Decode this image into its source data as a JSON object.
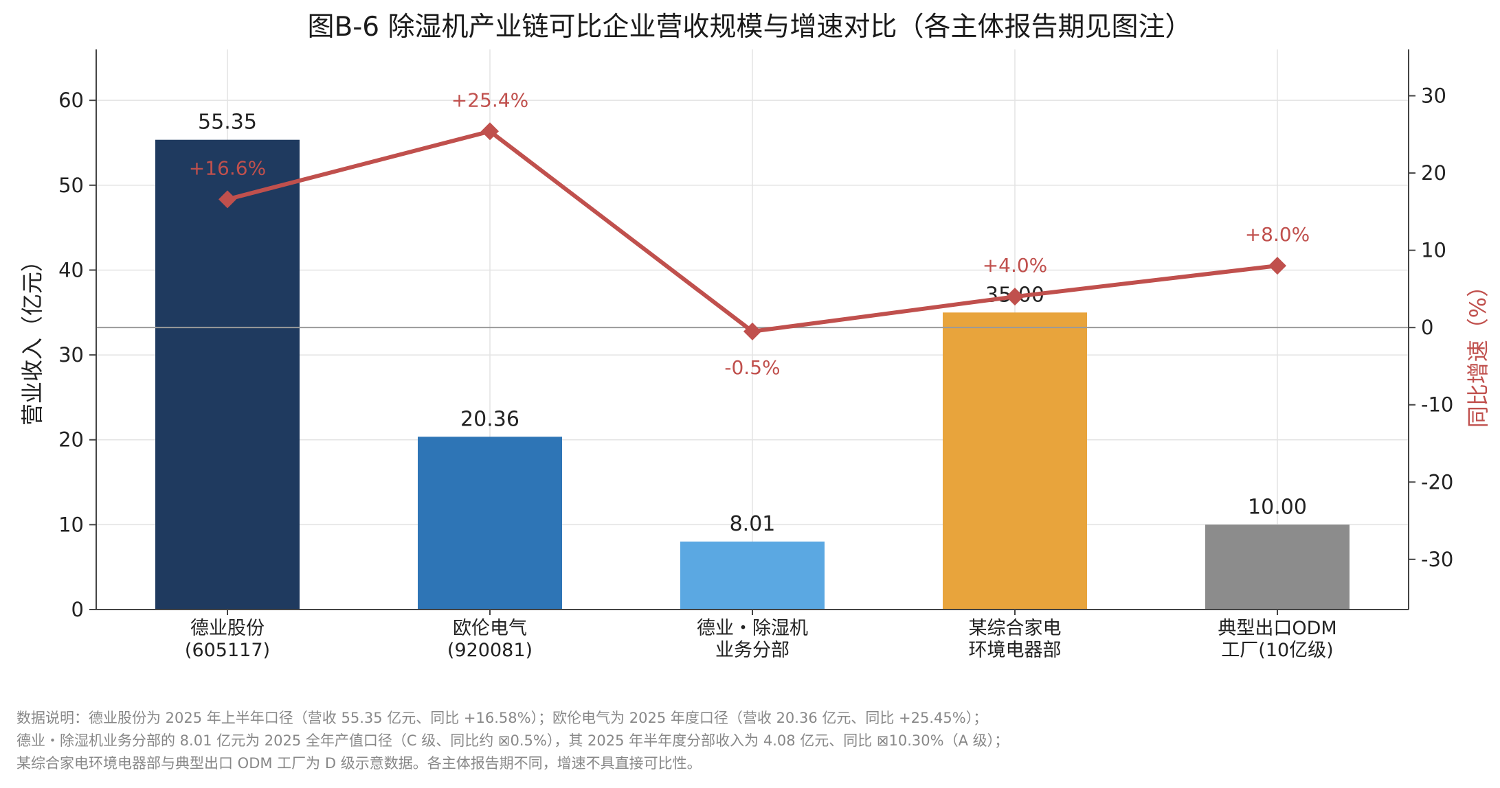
{
  "chart_data": {
    "type": "bar+line",
    "title": "图B-6  除湿机产业链可比企业营收规模与增速对比（各主体报告期见图注）",
    "ylabel": "营业收入（亿元）",
    "y2label": "同比增速（%）",
    "ylim": [
      0,
      66
    ],
    "y2lim": [
      -36.5,
      36
    ],
    "yticks": [
      0,
      10,
      20,
      30,
      40,
      50,
      60
    ],
    "y2ticks": [
      -30,
      -20,
      -10,
      0,
      10,
      20,
      30
    ],
    "grid": true,
    "categories": [
      [
        "德业股份",
        "(605117)"
      ],
      [
        "欧伦电气",
        "(920081)"
      ],
      [
        "德业・除湿机",
        "业务分部"
      ],
      [
        "某综合家电",
        "环境电器部"
      ],
      [
        "典型出口ODM",
        "工厂(10亿级)"
      ]
    ],
    "bars": {
      "values": [
        55.35,
        20.36,
        8.01,
        35.0,
        10.0
      ],
      "labels": [
        "55.35",
        "20.36",
        "8.01",
        "35.00",
        "10.00"
      ],
      "colors": [
        "#1f3a5f",
        "#2e75b6",
        "#5ba8e2",
        "#e8a43c",
        "#8c8c8c"
      ]
    },
    "growth": {
      "values": [
        16.6,
        25.4,
        -0.5,
        4.0,
        8.0
      ],
      "labels": [
        "+16.6%",
        "+25.4%",
        "-0.5%",
        "+4.0%",
        "+8.0%"
      ],
      "color": "#c0504d"
    }
  },
  "notes": [
    "数据说明：德业股份为 2025 年上半年口径（营收 55.35 亿元、同比 +16.58%）；欧伦电气为 2025 年度口径（营收 20.36 亿元、同比 +25.45%）；",
    "德业・除湿机业务分部的 8.01 亿元为 2025 全年产值口径（C 级、同比约 ⊠0.5%），其 2025 年半年度分部收入为 4.08 亿元、同比 ⊠10.30%（A 级）；",
    "某综合家电环境电器部与典型出口 ODM 工厂为 D 级示意数据。各主体报告期不同，增速不具直接可比性。"
  ]
}
